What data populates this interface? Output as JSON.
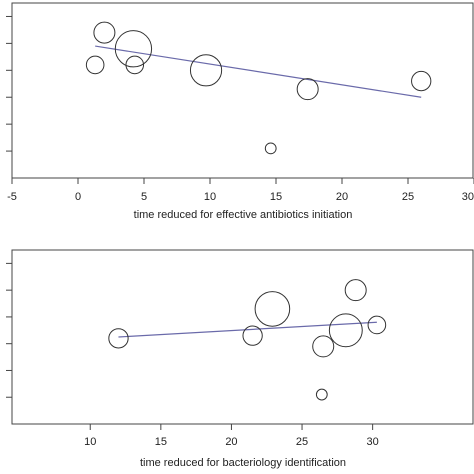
{
  "chart_data": [
    {
      "type": "scatter",
      "title": "",
      "xlabel": "time reduced for effective antibiotics initiation",
      "ylabel": "",
      "xlim": [
        -5,
        30
      ],
      "xticks": [
        "-5",
        "0",
        "5",
        "10",
        "15",
        "20",
        "25",
        "30"
      ],
      "ylim": [
        0,
        6.5
      ],
      "yticks": [
        1,
        2,
        3,
        4,
        5,
        6
      ],
      "grid": false,
      "legend": "none",
      "points": [
        {
          "x": 2.0,
          "y": 5.4,
          "size": 1.0
        },
        {
          "x": 4.2,
          "y": 4.8,
          "size": 1.9
        },
        {
          "x": 1.3,
          "y": 4.2,
          "size": 0.8
        },
        {
          "x": 4.3,
          "y": 4.2,
          "size": 0.8
        },
        {
          "x": 9.7,
          "y": 4.0,
          "size": 1.6
        },
        {
          "x": 17.4,
          "y": 3.3,
          "size": 1.0
        },
        {
          "x": 26.0,
          "y": 3.6,
          "size": 0.9
        },
        {
          "x": 14.6,
          "y": 1.1,
          "size": 0.4
        }
      ],
      "regression": {
        "x": [
          1.3,
          26.0
        ],
        "y": [
          4.9,
          3.0
        ]
      },
      "colors": {
        "points": "#333333",
        "line": "#6a6aaa"
      }
    },
    {
      "type": "scatter",
      "title": "",
      "xlabel": "time reduced for bacteriology identification",
      "ylabel": "",
      "xlim": [
        8,
        33
      ],
      "xticks": [
        "10",
        "15",
        "20",
        "25",
        "30"
      ],
      "ylim": [
        0,
        6.5
      ],
      "yticks": [
        1,
        2,
        3,
        4,
        5,
        6
      ],
      "grid": false,
      "legend": "none",
      "points": [
        {
          "x": 12.0,
          "y": 3.2,
          "size": 0.9
        },
        {
          "x": 21.5,
          "y": 3.3,
          "size": 0.9
        },
        {
          "x": 22.9,
          "y": 4.3,
          "size": 1.8
        },
        {
          "x": 26.5,
          "y": 2.9,
          "size": 1.0
        },
        {
          "x": 28.1,
          "y": 3.5,
          "size": 1.7
        },
        {
          "x": 28.8,
          "y": 5.0,
          "size": 1.0
        },
        {
          "x": 30.3,
          "y": 3.7,
          "size": 0.8
        },
        {
          "x": 26.4,
          "y": 1.1,
          "size": 0.4
        }
      ],
      "regression": {
        "x": [
          12.0,
          30.3
        ],
        "y": [
          3.25,
          3.8
        ]
      },
      "colors": {
        "points": "#333333",
        "line": "#6a6aaa"
      }
    }
  ]
}
